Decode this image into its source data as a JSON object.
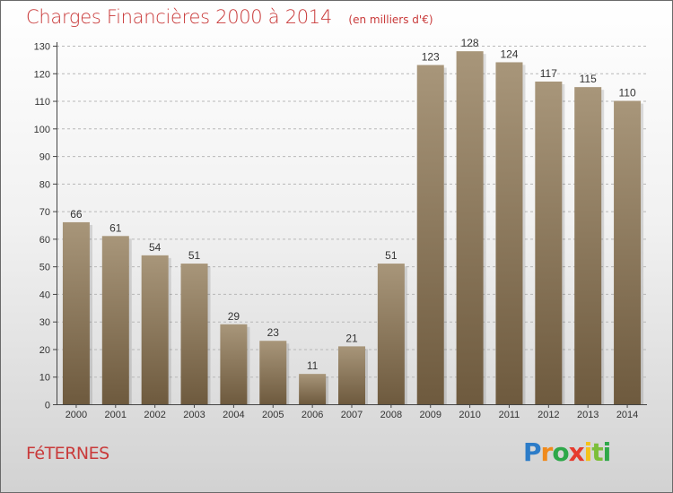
{
  "title": "Charges Financières 2000 à 2014",
  "subtitle": "(en milliers d'€)",
  "commune": "FéTERNES",
  "logo_text": "Proxiti",
  "colors": {
    "title": "#c93a3a",
    "bar_top": "#a8967a",
    "bar_bottom": "#6e5a3e"
  },
  "chart_data": {
    "type": "bar",
    "categories": [
      "2000",
      "2001",
      "2002",
      "2003",
      "2004",
      "2005",
      "2006",
      "2007",
      "2008",
      "2009",
      "2010",
      "2011",
      "2012",
      "2013",
      "2014"
    ],
    "values": [
      66,
      61,
      54,
      51,
      29,
      23,
      11,
      21,
      51,
      123,
      128,
      124,
      117,
      115,
      110
    ],
    "ylim": [
      0,
      130
    ],
    "yticks": [
      0,
      10,
      20,
      30,
      40,
      50,
      60,
      70,
      80,
      90,
      100,
      110,
      120,
      130
    ],
    "grid": true
  }
}
